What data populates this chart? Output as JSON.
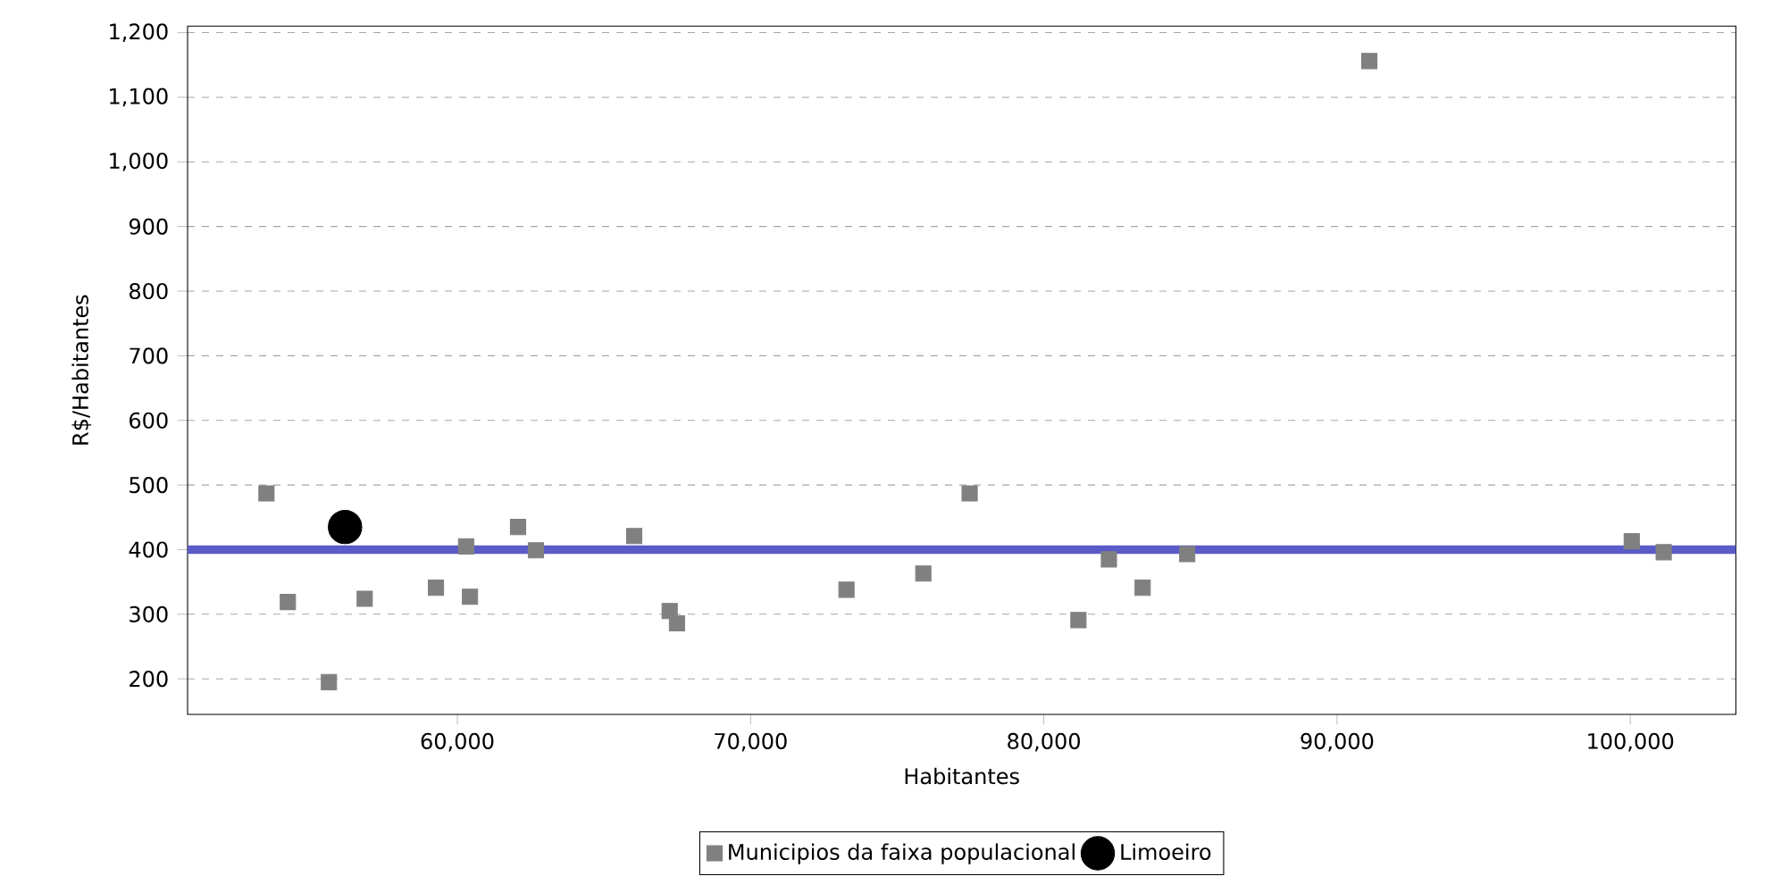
{
  "chart_data": {
    "type": "scatter",
    "xlabel": "Habitantes",
    "ylabel": "R$/Habitantes",
    "xlim": [
      50800,
      103600
    ],
    "ylim": [
      145,
      1210
    ],
    "xticks": [
      {
        "value": 60000,
        "label": "60,000"
      },
      {
        "value": 70000,
        "label": "70,000"
      },
      {
        "value": 80000,
        "label": "80,000"
      },
      {
        "value": 90000,
        "label": "90,000"
      },
      {
        "value": 100000,
        "label": "100,000"
      }
    ],
    "yticks": [
      200,
      300,
      400,
      500,
      600,
      700,
      800,
      900,
      {
        "value": 1000,
        "label": "1,000"
      },
      {
        "value": 1100,
        "label": "1,100"
      },
      {
        "value": 1200,
        "label": "1,200"
      }
    ],
    "grid": "y",
    "legend": "bottom",
    "marker": "square",
    "ref_lines": [
      {
        "axis": "y",
        "value": 400,
        "color": "#5a5ac8"
      }
    ],
    "series": [
      {
        "name": "Municipios da faixa populacional",
        "color": "#808080",
        "x": [
          53490,
          54220,
          55620,
          56840,
          59270,
          60300,
          60430,
          62070,
          62680,
          66030,
          67240,
          67490,
          73270,
          75890,
          77470,
          81180,
          82220,
          83370,
          84890,
          91100,
          100050,
          101140
        ],
        "values": [
          487,
          319,
          195,
          324,
          341,
          405,
          327,
          435,
          399,
          421,
          305,
          286,
          338,
          363,
          487,
          291,
          385,
          341,
          393,
          1156,
          413,
          396
        ]
      },
      {
        "name": "Limoeiro",
        "color": "#000000",
        "marker": "circle",
        "x": [
          56170
        ],
        "values": [
          435
        ]
      }
    ]
  }
}
